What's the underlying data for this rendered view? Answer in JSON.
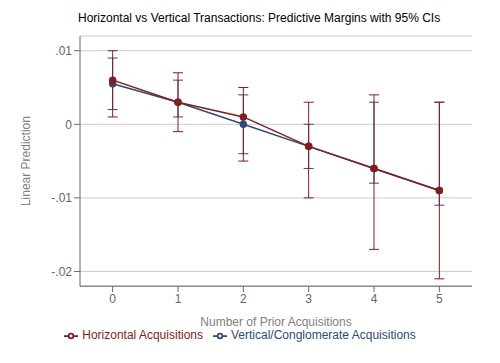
{
  "chart_data": {
    "type": "line",
    "title": "Horizontal vs Vertical Transactions: Predictive Margins with 95% CIs",
    "xlabel": "Number of Prior Acquisitions",
    "ylabel": "Linear Prediction",
    "x": [
      0,
      1,
      2,
      3,
      4,
      5
    ],
    "xlim": [
      -0.5,
      5.5
    ],
    "xticks": [
      0,
      1,
      2,
      3,
      4,
      5
    ],
    "ylim": [
      -0.022,
      0.012
    ],
    "yticks": [
      {
        "value": 0.01,
        "label": ".01"
      },
      0,
      {
        "value": -0.01,
        "label": "-.01"
      },
      {
        "value": -0.02,
        "label": "-.02"
      }
    ],
    "grid": "y",
    "legend": "bottom",
    "series": [
      {
        "name": "Vertical/Conglomerate Acquisitions",
        "color": "#2e4a7a",
        "marker": "circle",
        "values": [
          0.0055,
          0.003,
          0.0,
          -0.003,
          -0.006,
          -0.009
        ],
        "ci_low": [
          0.002,
          0.001,
          -0.004,
          -0.006,
          -0.008,
          -0.011
        ],
        "ci_high": [
          0.009,
          0.006,
          0.004,
          0.0,
          0.003,
          0.003
        ]
      },
      {
        "name": "Horizontal Acquisitions",
        "color": "#8b1a1a",
        "marker": "circle",
        "values": [
          0.006,
          0.003,
          0.001,
          -0.003,
          -0.006,
          -0.009
        ],
        "ci_low": [
          0.001,
          -0.001,
          -0.005,
          -0.01,
          -0.017,
          -0.021
        ],
        "ci_high": [
          0.01,
          0.007,
          0.005,
          0.003,
          0.004,
          0.003
        ]
      }
    ]
  }
}
